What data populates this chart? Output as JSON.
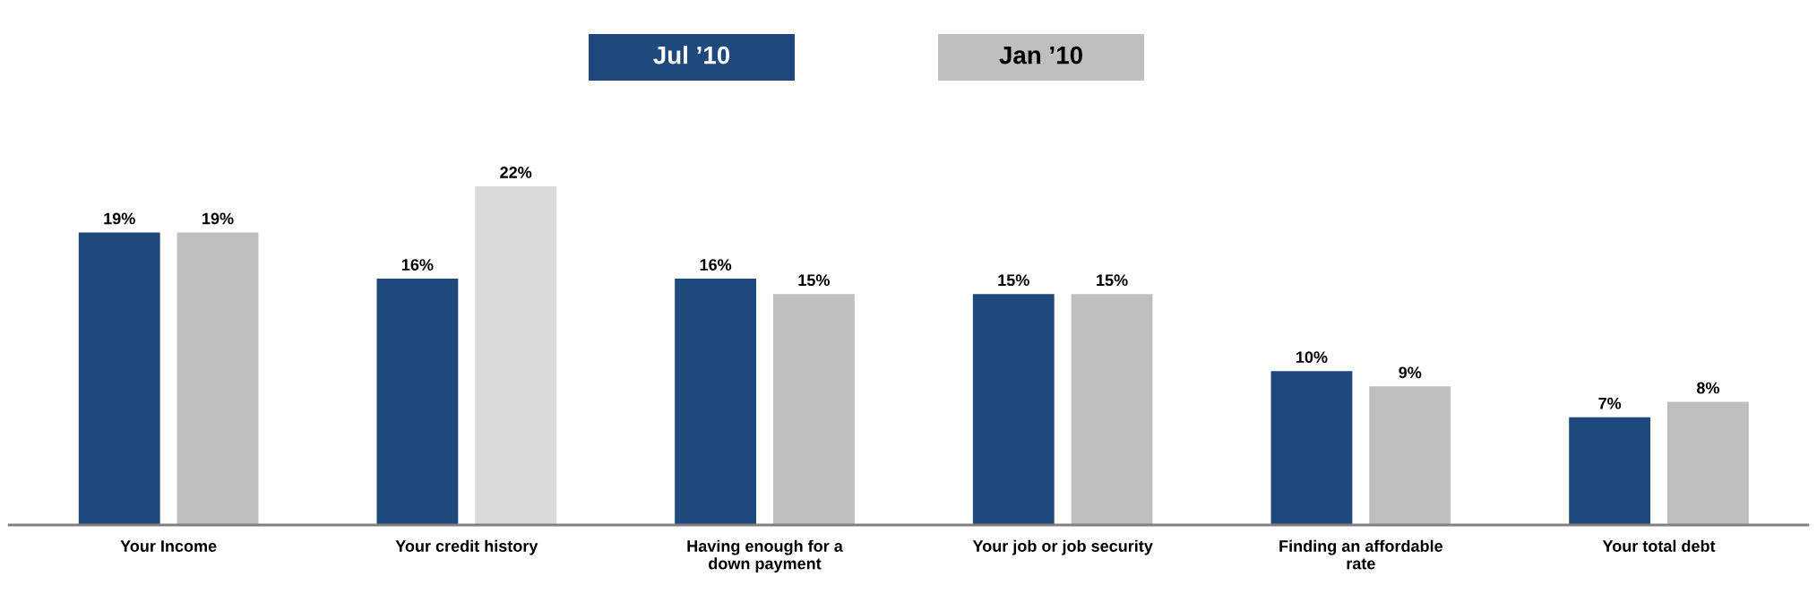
{
  "chart_data": {
    "type": "bar",
    "categories": [
      "Your Income",
      "Your credit history",
      "Having enough for a\ndown payment",
      "Your job or job security",
      "Finding an affordable\nrate",
      "Your total debt"
    ],
    "series": [
      {
        "name": "Jul ’10",
        "color": "#1f497d",
        "values": [
          19,
          16,
          16,
          15,
          10,
          7
        ],
        "value_labels": [
          "19%",
          "16%",
          "16%",
          "15%",
          "10%",
          "7%"
        ]
      },
      {
        "name": "Jan ’10",
        "color": "#bfbfbf",
        "colors": [
          "#bfbfbf",
          "#d9d9d9",
          "#bfbfbf",
          "#bfbfbf",
          "#bfbfbf",
          "#bfbfbf"
        ],
        "values": [
          19,
          22,
          15,
          15,
          9,
          8
        ],
        "value_labels": [
          "19%",
          "22%",
          "15%",
          "15%",
          "9%",
          "8%"
        ]
      }
    ],
    "tick_labels": "x",
    "legend": "top",
    "grid": false
  }
}
